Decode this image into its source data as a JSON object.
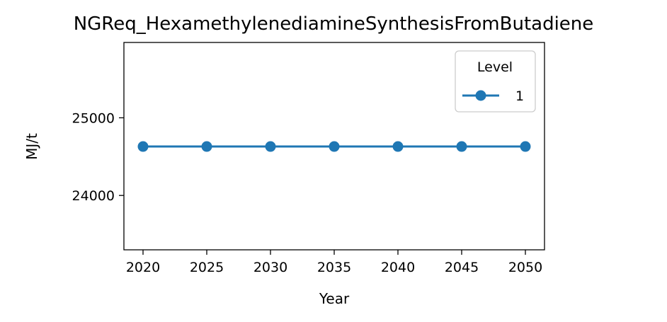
{
  "chart_data": {
    "type": "line",
    "title": "NGReq_HexamethylenediamineSynthesisFromButadiene",
    "xlabel": "Year",
    "ylabel": "MJ/t",
    "x": [
      2020,
      2025,
      2030,
      2035,
      2040,
      2045,
      2050
    ],
    "series": [
      {
        "name": "1",
        "color": "#1f77b4",
        "marker": "circle",
        "values": [
          24630,
          24630,
          24630,
          24630,
          24630,
          24630,
          24630
        ]
      }
    ],
    "xlim": [
      2018.5,
      2051.5
    ],
    "ylim": [
      23300,
      25970
    ],
    "xticks": [
      2020,
      2025,
      2030,
      2035,
      2040,
      2045,
      2050
    ],
    "yticks": [
      24000,
      25000
    ],
    "grid": false,
    "legend": {
      "title": "Level",
      "position": "top-right"
    }
  }
}
